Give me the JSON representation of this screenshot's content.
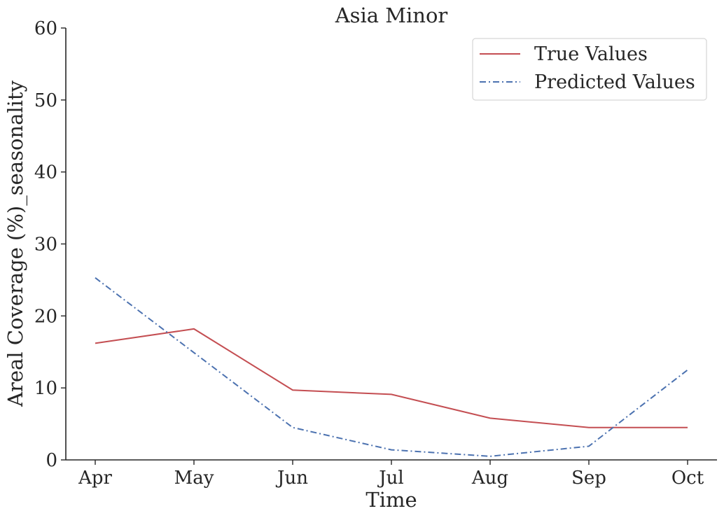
{
  "chart_data": {
    "type": "line",
    "title": "Asia Minor",
    "xlabel": "Time",
    "ylabel": "Areal Coverage (%)_seasonality",
    "categories": [
      "Apr",
      "May",
      "Jun",
      "Jul",
      "Aug",
      "Sep",
      "Oct"
    ],
    "ylim": [
      0,
      60
    ],
    "yticks": [
      0,
      10,
      20,
      30,
      40,
      50,
      60
    ],
    "grid": false,
    "legend_position": "top-right",
    "series": [
      {
        "name": "True Values",
        "color": "#c44e52",
        "dash": "solid",
        "values": [
          16.2,
          18.2,
          9.7,
          9.1,
          5.8,
          4.5,
          4.5
        ]
      },
      {
        "name": "Predicted Values",
        "color": "#4c72b0",
        "dash": "dashdot",
        "values": [
          25.3,
          14.9,
          4.5,
          1.4,
          0.5,
          1.9,
          12.5
        ]
      }
    ]
  }
}
